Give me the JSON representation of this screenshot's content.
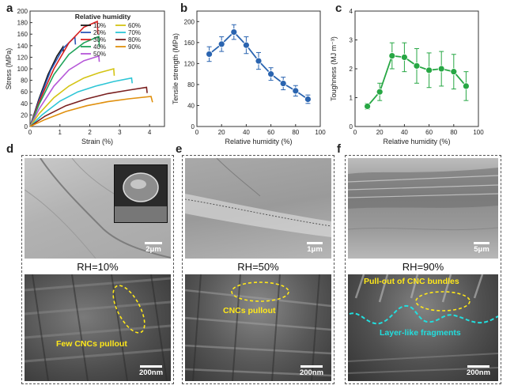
{
  "panel_labels": [
    "a",
    "b",
    "c",
    "d",
    "e",
    "f"
  ],
  "chart_data": [
    {
      "type": "line",
      "panel": "a",
      "title": "",
      "xlabel": "Strain (%)",
      "ylabel": "Stress (MPa)",
      "xlim": [
        0,
        4.5
      ],
      "ylim": [
        0,
        200
      ],
      "xticks": [
        0,
        1,
        2,
        3,
        4
      ],
      "yticks": [
        0,
        20,
        40,
        60,
        80,
        100,
        120,
        140,
        160,
        180,
        200
      ],
      "legend_title": "Relative humidity",
      "legend_position": "top-right",
      "series": [
        {
          "name": "10%",
          "color": "#1a1a1a",
          "points": [
            [
              0,
              0
            ],
            [
              0.3,
              48
            ],
            [
              0.6,
              90
            ],
            [
              0.9,
              122
            ],
            [
              1.1,
              138
            ],
            [
              1.12,
              128
            ]
          ]
        },
        {
          "name": "20%",
          "color": "#2c57b8",
          "points": [
            [
              0,
              0
            ],
            [
              0.3,
              45
            ],
            [
              0.7,
              98
            ],
            [
              1.1,
              135
            ],
            [
              1.5,
              155
            ],
            [
              1.52,
              142
            ]
          ]
        },
        {
          "name": "30%",
          "color": "#d62020",
          "points": [
            [
              0,
              0
            ],
            [
              0.3,
              42
            ],
            [
              0.8,
              100
            ],
            [
              1.3,
              145
            ],
            [
              1.8,
              172
            ],
            [
              2.25,
              182
            ],
            [
              2.27,
              160
            ]
          ]
        },
        {
          "name": "40%",
          "color": "#1fa35a",
          "points": [
            [
              0,
              0
            ],
            [
              0.3,
              38
            ],
            [
              0.8,
              90
            ],
            [
              1.3,
              125
            ],
            [
              1.8,
              145
            ],
            [
              2.3,
              156
            ],
            [
              2.32,
              138
            ]
          ]
        },
        {
          "name": "50%",
          "color": "#b658d8",
          "points": [
            [
              0,
              0
            ],
            [
              0.3,
              30
            ],
            [
              0.8,
              70
            ],
            [
              1.3,
              98
            ],
            [
              1.8,
              114
            ],
            [
              2.3,
              122
            ],
            [
              2.32,
              112
            ]
          ]
        },
        {
          "name": "60%",
          "color": "#d4c414",
          "points": [
            [
              0,
              0
            ],
            [
              0.3,
              22
            ],
            [
              0.8,
              50
            ],
            [
              1.3,
              70
            ],
            [
              1.8,
              84
            ],
            [
              2.3,
              93
            ],
            [
              2.8,
              100
            ],
            [
              2.82,
              88
            ]
          ]
        },
        {
          "name": "70%",
          "color": "#2ec6d6",
          "points": [
            [
              0,
              0
            ],
            [
              0.4,
              20
            ],
            [
              1.0,
              44
            ],
            [
              1.6,
              60
            ],
            [
              2.2,
              70
            ],
            [
              2.8,
              78
            ],
            [
              3.4,
              84
            ],
            [
              3.42,
              75
            ]
          ]
        },
        {
          "name": "80%",
          "color": "#7a2020",
          "points": [
            [
              0,
              0
            ],
            [
              0.5,
              18
            ],
            [
              1.2,
              36
            ],
            [
              1.9,
              48
            ],
            [
              2.6,
              57
            ],
            [
              3.3,
              63
            ],
            [
              3.9,
              68
            ],
            [
              3.92,
              58
            ]
          ]
        },
        {
          "name": "90%",
          "color": "#e0900e",
          "points": [
            [
              0,
              0
            ],
            [
              0.5,
              12
            ],
            [
              1.2,
              26
            ],
            [
              1.9,
              36
            ],
            [
              2.6,
              43
            ],
            [
              3.3,
              48
            ],
            [
              4.05,
              52
            ],
            [
              4.1,
              42
            ]
          ]
        }
      ]
    },
    {
      "type": "line",
      "panel": "b",
      "title": "",
      "xlabel": "Relative humidity (%)",
      "ylabel": "Tensile strength (MPa)",
      "xlim": [
        0,
        100
      ],
      "ylim": [
        0,
        220
      ],
      "xticks": [
        0,
        20,
        40,
        60,
        80,
        100
      ],
      "yticks": [
        0,
        40,
        80,
        120,
        160,
        200
      ],
      "color": "#2a64b0",
      "x": [
        10,
        20,
        30,
        40,
        50,
        60,
        70,
        80,
        90
      ],
      "y": [
        138,
        157,
        180,
        155,
        125,
        100,
        82,
        68,
        52
      ],
      "err": [
        14,
        14,
        14,
        16,
        16,
        12,
        12,
        10,
        8
      ]
    },
    {
      "type": "line",
      "panel": "c",
      "title": "",
      "xlabel": "Relative humidity (%)",
      "ylabel": "Toughness (MJ m⁻³)",
      "xlim": [
        0,
        100
      ],
      "ylim": [
        0,
        4
      ],
      "xticks": [
        0,
        20,
        40,
        60,
        80,
        100
      ],
      "yticks": [
        0,
        1,
        2,
        3,
        4
      ],
      "color": "#27a744",
      "x": [
        10,
        20,
        30,
        40,
        50,
        60,
        70,
        80,
        90
      ],
      "y": [
        0.7,
        1.2,
        2.45,
        2.4,
        2.1,
        1.95,
        2.0,
        1.9,
        1.4
      ],
      "err": [
        0.1,
        0.3,
        0.45,
        0.5,
        0.6,
        0.6,
        0.6,
        0.6,
        0.5
      ]
    }
  ],
  "sem": {
    "d": {
      "rh_label": "RH=10%",
      "scale_top": "2μm",
      "scale_bottom": "200nm",
      "annotation": "Few CNCs pullout"
    },
    "e": {
      "rh_label": "RH=50%",
      "scale_top": "1μm",
      "scale_bottom": "200nm",
      "annotation": "CNCs pullout"
    },
    "f": {
      "rh_label": "RH=90%",
      "scale_top": "5μm",
      "scale_bottom": "200nm",
      "annotation": "Pull-out of CNC bundles",
      "annotation2": "Layer-like fragments"
    }
  },
  "colors": {
    "sem_light": "#b9b9b9",
    "sem_dark": "#4a4a4a",
    "annotation_yellow": "#ffe81a",
    "annotation_cyan": "#22dede"
  }
}
